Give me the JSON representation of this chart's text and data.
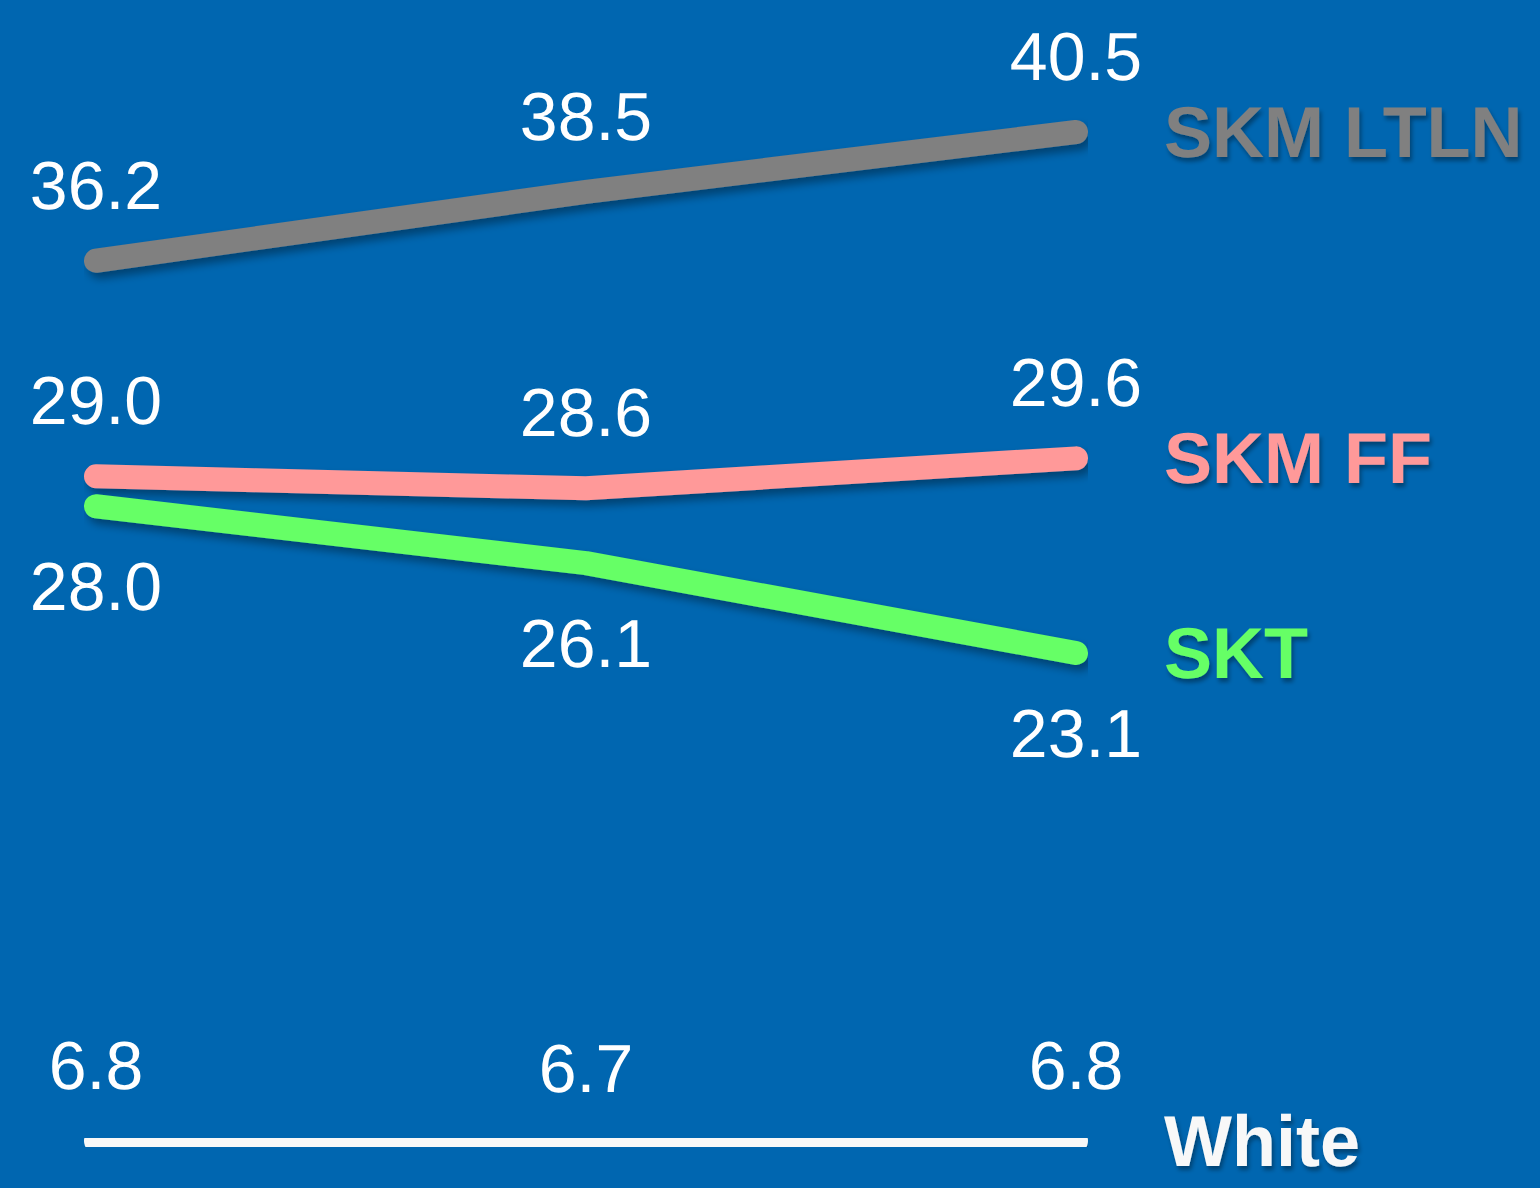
{
  "chart_data": {
    "type": "line",
    "categories": [
      null,
      null,
      null
    ],
    "series": [
      {
        "name": "SKM LTLN",
        "color": "#808080",
        "values": [
          36.2,
          38.5,
          40.5
        ],
        "value_labels": [
          "36.2",
          "38.5",
          "40.5"
        ]
      },
      {
        "name": "SKM FF",
        "color": "#ff9999",
        "values": [
          29.0,
          28.6,
          29.6
        ],
        "value_labels": [
          "29.0",
          "28.6",
          "29.6"
        ]
      },
      {
        "name": "SKT",
        "color": "#66ff66",
        "values": [
          28.0,
          26.1,
          23.1
        ],
        "value_labels": [
          "28.0",
          "26.1",
          "23.1"
        ]
      },
      {
        "name": "White",
        "color": "#f8f8f8",
        "values": [
          6.8,
          6.7,
          6.8
        ],
        "value_labels": [
          "6.8",
          "6.7",
          "6.8"
        ]
      }
    ],
    "marker": "none",
    "line_style": "solid",
    "tick_labels": false
  }
}
